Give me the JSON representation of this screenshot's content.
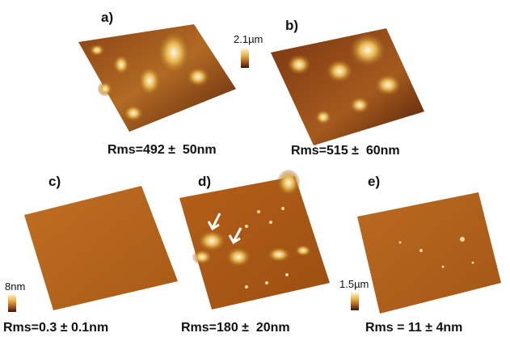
{
  "panels": [
    {
      "id": "a",
      "label": "a)",
      "caption": "Rms=492 ±  50nm"
    },
    {
      "id": "b",
      "label": "b)",
      "caption": "Rms=515 ±  60nm"
    },
    {
      "id": "c",
      "label": "c)",
      "caption": "Rms=0.3 ± 0.1nm"
    },
    {
      "id": "d",
      "label": "d)",
      "caption": "Rms=180 ±  20nm"
    },
    {
      "id": "e",
      "label": "e)",
      "caption": "Rms = 11 ± 4nm"
    }
  ],
  "scales": {
    "top": "2.1µm",
    "left": "8nm",
    "right": "1.5µm"
  },
  "colors": {
    "highlight": "#fff6d6",
    "mid": "#c7822f",
    "dark": "#5a2408",
    "flat": "#b9651d"
  }
}
